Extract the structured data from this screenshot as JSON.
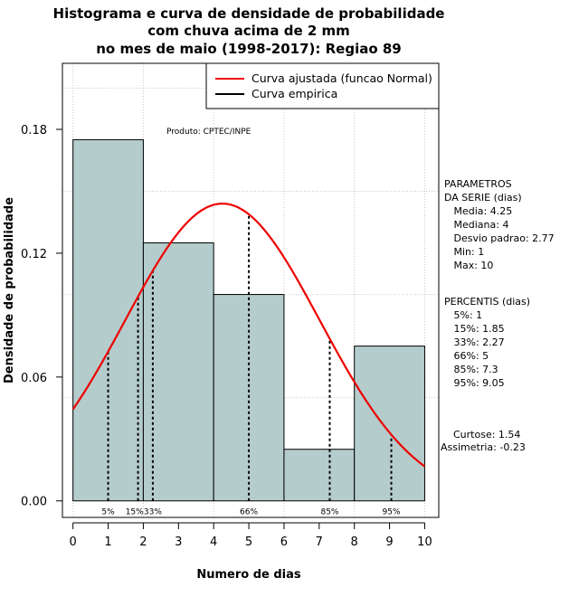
{
  "chart_data": {
    "type": "histogram",
    "title_lines": [
      "Histograma e curva de densidade de probabilidade",
      "com chuva acima de 2 mm",
      "no mes de maio (1998-2017): Regiao 89"
    ],
    "xlabel": "Numero de dias",
    "ylabel": "Densidade de probabilidade",
    "xlim": [
      -0.3,
      10.4
    ],
    "ylim": [
      -0.008,
      0.212
    ],
    "x_ticks": [
      0,
      1,
      2,
      3,
      4,
      5,
      6,
      7,
      8,
      9,
      10
    ],
    "y_ticks": [
      0.0,
      0.06,
      0.12,
      0.18
    ],
    "y_tick_labels": [
      "0.00",
      "0.06",
      "0.12",
      "0.18"
    ],
    "grid_x": [
      0,
      2,
      4,
      6,
      8,
      10
    ],
    "grid_y": [
      0.05,
      0.1,
      0.15,
      0.2
    ],
    "bins": [
      {
        "start": 0,
        "end": 2,
        "density": 0.175
      },
      {
        "start": 2,
        "end": 4,
        "density": 0.125
      },
      {
        "start": 4,
        "end": 6,
        "density": 0.1
      },
      {
        "start": 6,
        "end": 8,
        "density": 0.025
      },
      {
        "start": 8,
        "end": 10,
        "density": 0.075
      }
    ],
    "bar_color": "#b4cccc",
    "normal_fit": {
      "mean": 4.25,
      "sd": 2.77,
      "x_range": [
        0,
        10
      ],
      "color": "#ee0000"
    },
    "percentiles": [
      {
        "label": "5%",
        "value": 1,
        "label_x": 1
      },
      {
        "label": "15%",
        "value": 1.85,
        "label_x": 1.75
      },
      {
        "label": "33%",
        "value": 2.27,
        "label_x": 2.27
      },
      {
        "label": "66%",
        "value": 5,
        "label_x": 5
      },
      {
        "label": "85%",
        "value": 7.3,
        "label_x": 7.3
      },
      {
        "label": "95%",
        "value": 9.05,
        "label_x": 9.05
      }
    ],
    "legend": {
      "position": "top-right",
      "items": [
        {
          "label": "Curva ajustada (funcao Normal)",
          "color": "#ee0000"
        },
        {
          "label": "Curva empirica",
          "color": "#000000"
        }
      ]
    },
    "annotations": {
      "producer": "Produto: CPTEC/INPE",
      "parametros_lines": [
        "PARAMETROS",
        "DA SERIE (dias)",
        "   Media: 4.25",
        "   Mediana: 4",
        "   Desvio padrao: 2.77",
        "   Min: 1",
        "   Max: 10"
      ],
      "percentis_lines": [
        "PERCENTIS (dias)",
        "   5%: 1",
        "   15%: 1.85",
        "   33%: 2.27",
        "   66%: 5",
        "   85%: 7.3",
        "   95%: 9.05"
      ],
      "curtose": "Curtose: 1.54",
      "assimetria": "Assimetria: -0.23"
    }
  }
}
